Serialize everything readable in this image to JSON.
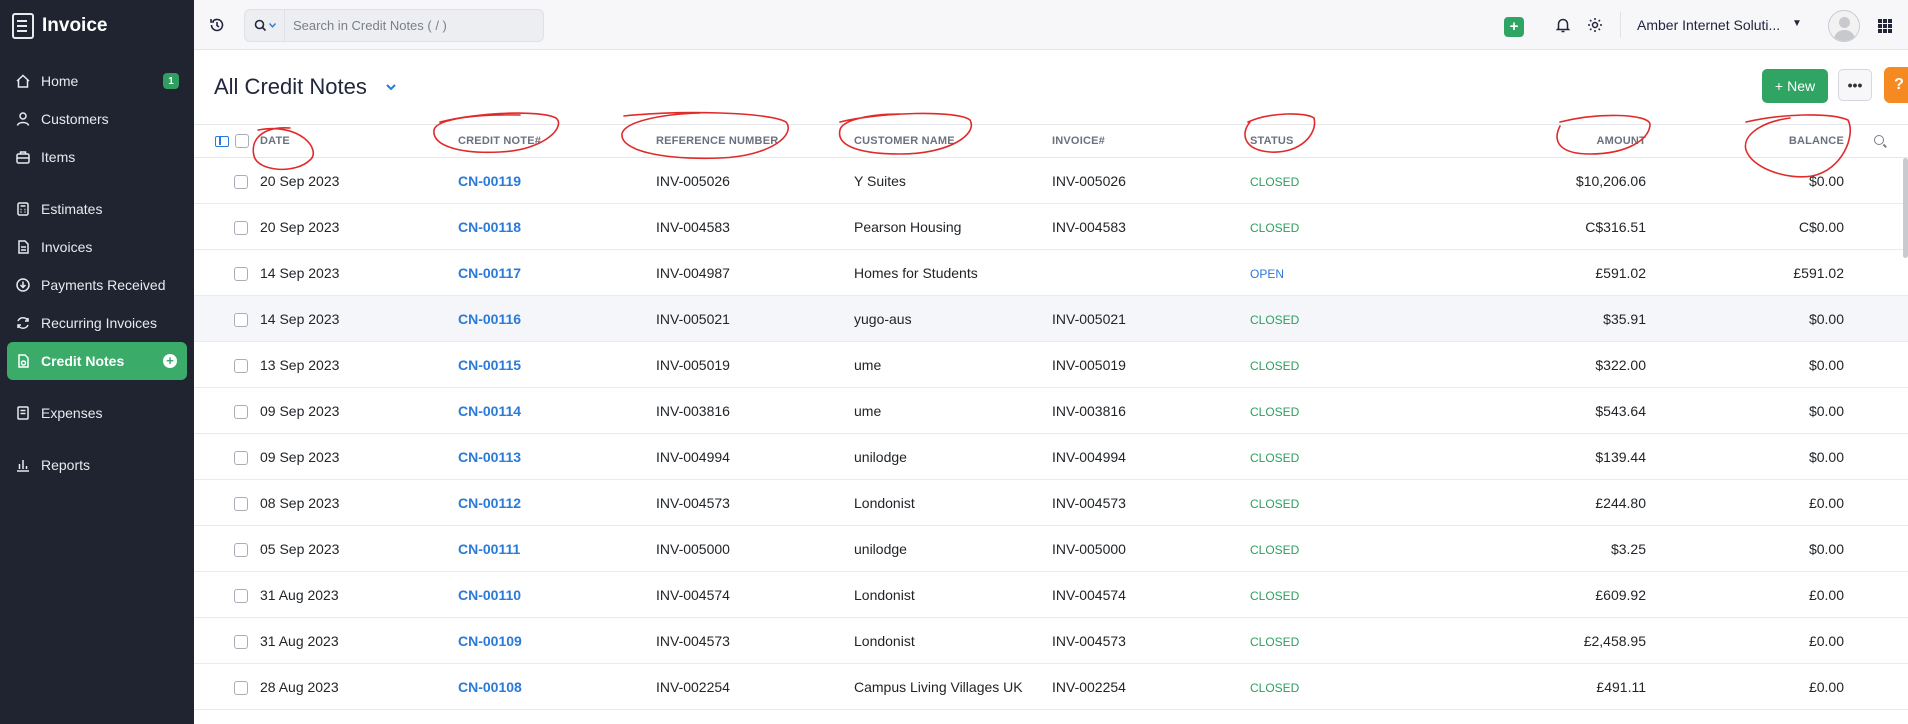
{
  "app": {
    "title": "Invoice"
  },
  "sidebar": {
    "items": [
      {
        "label": "Home",
        "icon": "home-icon",
        "badge": "1"
      },
      {
        "label": "Customers",
        "icon": "user-icon"
      },
      {
        "label": "Items",
        "icon": "box-icon"
      },
      {
        "label": "Estimates",
        "icon": "calculator-icon"
      },
      {
        "label": "Invoices",
        "icon": "document-icon"
      },
      {
        "label": "Payments Received",
        "icon": "download-icon"
      },
      {
        "label": "Recurring Invoices",
        "icon": "refresh-icon"
      },
      {
        "label": "Credit Notes",
        "icon": "credit-note-icon",
        "active": true
      },
      {
        "label": "Expenses",
        "icon": "receipt-icon"
      },
      {
        "label": "Reports",
        "icon": "bar-chart-icon"
      }
    ]
  },
  "topbar": {
    "search_placeholder": "Search in Credit Notes ( / )",
    "org_name": "Amber Internet Soluti...",
    "icons": [
      "history-icon",
      "search-icon",
      "plus-icon",
      "bell-icon",
      "gear-icon",
      "avatar",
      "apps-icon"
    ]
  },
  "header": {
    "title": "All Credit Notes",
    "new_label": "New",
    "more_label": "•••",
    "help_label": "?"
  },
  "table": {
    "columns": [
      "DATE",
      "CREDIT NOTE#",
      "REFERENCE NUMBER",
      "CUSTOMER NAME",
      "INVOICE#",
      "STATUS",
      "AMOUNT",
      "BALANCE"
    ],
    "rows": [
      {
        "date": "20 Sep 2023",
        "credit_note": "CN-00119",
        "reference": "INV-005026",
        "customer": "Y Suites",
        "invoice": "INV-005026",
        "status": "CLOSED",
        "amount": "$10,206.06",
        "balance": "$0.00"
      },
      {
        "date": "20 Sep 2023",
        "credit_note": "CN-00118",
        "reference": "INV-004583",
        "customer": "Pearson Housing",
        "invoice": "INV-004583",
        "status": "CLOSED",
        "amount": "C$316.51",
        "balance": "C$0.00"
      },
      {
        "date": "14 Sep 2023",
        "credit_note": "CN-00117",
        "reference": "INV-004987",
        "customer": "Homes for Students",
        "invoice": "",
        "status": "OPEN",
        "amount": "£591.02",
        "balance": "£591.02"
      },
      {
        "date": "14 Sep 2023",
        "credit_note": "CN-00116",
        "reference": "INV-005021",
        "customer": "yugo-aus",
        "invoice": "INV-005021",
        "status": "CLOSED",
        "amount": "$35.91",
        "balance": "$0.00"
      },
      {
        "date": "13 Sep 2023",
        "credit_note": "CN-00115",
        "reference": "INV-005019",
        "customer": "ume",
        "invoice": "INV-005019",
        "status": "CLOSED",
        "amount": "$322.00",
        "balance": "$0.00"
      },
      {
        "date": "09 Sep 2023",
        "credit_note": "CN-00114",
        "reference": "INV-003816",
        "customer": "ume",
        "invoice": "INV-003816",
        "status": "CLOSED",
        "amount": "$543.64",
        "balance": "$0.00"
      },
      {
        "date": "09 Sep 2023",
        "credit_note": "CN-00113",
        "reference": "INV-004994",
        "customer": "unilodge",
        "invoice": "INV-004994",
        "status": "CLOSED",
        "amount": "$139.44",
        "balance": "$0.00"
      },
      {
        "date": "08 Sep 2023",
        "credit_note": "CN-00112",
        "reference": "INV-004573",
        "customer": "Londonist",
        "invoice": "INV-004573",
        "status": "CLOSED",
        "amount": "£244.80",
        "balance": "£0.00"
      },
      {
        "date": "05 Sep 2023",
        "credit_note": "CN-00111",
        "reference": "INV-005000",
        "customer": "unilodge",
        "invoice": "INV-005000",
        "status": "CLOSED",
        "amount": "$3.25",
        "balance": "$0.00"
      },
      {
        "date": "31 Aug 2023",
        "credit_note": "CN-00110",
        "reference": "INV-004574",
        "customer": "Londonist",
        "invoice": "INV-004574",
        "status": "CLOSED",
        "amount": "£609.92",
        "balance": "£0.00"
      },
      {
        "date": "31 Aug 2023",
        "credit_note": "CN-00109",
        "reference": "INV-004573",
        "customer": "Londonist",
        "invoice": "INV-004573",
        "status": "CLOSED",
        "amount": "£2,458.95",
        "balance": "£0.00"
      },
      {
        "date": "28 Aug 2023",
        "credit_note": "CN-00108",
        "reference": "INV-002254",
        "customer": "Campus Living Villages UK",
        "invoice": "INV-002254",
        "status": "CLOSED",
        "amount": "£491.11",
        "balance": "£0.00"
      }
    ]
  },
  "colors": {
    "sidebar_bg": "#1f2430",
    "accent_green": "#3bab6a",
    "link_blue": "#2a7ad9",
    "closed_green": "#2e9e5e",
    "annotation_red": "#e02b2b",
    "help_orange": "#f58a22"
  }
}
